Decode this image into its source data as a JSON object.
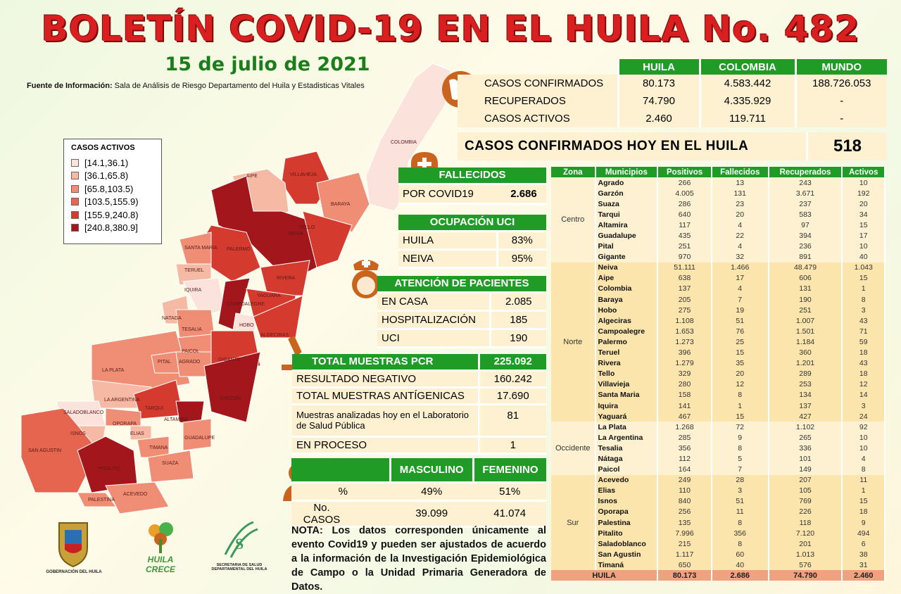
{
  "header": {
    "title": "BOLETÍN COVID-19 EN EL HUILA No. 482",
    "date": "15 de julio de 2021",
    "source_label": "Fuente de Información:",
    "source_text": " Sala de Análisis de Riesgo Departamento del Huila y Estadisticas Vitales"
  },
  "legend": {
    "title": "CASOS ACTIVOS",
    "items": [
      {
        "label": "[14.1,36.1)",
        "color": "#fbe3dc"
      },
      {
        "label": "[36.1,65.8)",
        "color": "#f6b9a3"
      },
      {
        "label": "[65.8,103.5)",
        "color": "#ef8e74"
      },
      {
        "label": "[103.5,155.9)",
        "color": "#e5654e"
      },
      {
        "label": "[155.9,240.8)",
        "color": "#d43a2e"
      },
      {
        "label": "[240.8,380.9]",
        "color": "#a3161b"
      }
    ]
  },
  "map_labels": [
    "COLOMBIA",
    "AIPE",
    "VILLAVIEJA",
    "BARAYA",
    "TELLO",
    "NEIVA",
    "SANTA MARIA",
    "PALERMO",
    "TERUEL",
    "RIVERA",
    "IQUIRA",
    "CAMPOALEGRE",
    "YAGUARA",
    "NATAGA",
    "HOBO",
    "TESALIA",
    "ALGECIRAS",
    "PAICOL",
    "GIGANTE",
    "LA PLATA",
    "PITAL",
    "AGRADO",
    "GARZON",
    "LA ARGENTINA",
    "TARQUI",
    "SALADOBLANCO",
    "ISNOS",
    "OPORAPA",
    "ELIAS",
    "ALTAMIRA",
    "GUADALUPE",
    "TIMANA",
    "SAN AGUSTIN",
    "SUAZA",
    "PITALITO",
    "ACEVEDO",
    "PALESTINA"
  ],
  "summary": {
    "headers": [
      "HUILA",
      "COLOMBIA",
      "MUNDO"
    ],
    "rows": [
      {
        "label": "CASOS CONFIRMADOS",
        "values": [
          "80.173",
          "4.583.442",
          "188.726.053"
        ]
      },
      {
        "label": "RECUPERADOS",
        "values": [
          "74.790",
          "4.335.929",
          "-"
        ]
      },
      {
        "label": "CASOS ACTIVOS",
        "values": [
          "2.460",
          "119.711",
          "-"
        ]
      }
    ],
    "today_label": "CASOS CONFIRMADOS  HOY EN EL HUILA",
    "today_value": "518"
  },
  "fallecidos": {
    "title": "FALLECIDOS",
    "label": "POR COVID19",
    "value": "2.686"
  },
  "uci": {
    "title": "OCUPACIÓN UCI",
    "rows": [
      {
        "label": "HUILA",
        "value": "83%"
      },
      {
        "label": "NEIVA",
        "value": "95%"
      }
    ]
  },
  "atencion": {
    "title": "ATENCIÓN DE PACIENTES",
    "rows": [
      {
        "label": "EN CASA",
        "value": "2.085"
      },
      {
        "label": "HOSPITALIZACIÓN",
        "value": "185"
      },
      {
        "label": "UCI",
        "value": "190"
      }
    ]
  },
  "pcr": {
    "title": "TOTAL MUESTRAS PCR",
    "value": "225.092",
    "rows": [
      {
        "label": "RESULTADO  NEGATIVO",
        "value": "160.242"
      },
      {
        "label": "TOTAL  MUESTRAS  ANTÍGENICAS",
        "value": "17.690"
      },
      {
        "label": "Muestras analizadas hoy en el Laboratorio de Salud Pública",
        "value": "81"
      },
      {
        "label": "EN PROCESO",
        "value": "1"
      }
    ]
  },
  "gender": {
    "headers": [
      "MASCULINO",
      "FEMENINO"
    ],
    "rows": [
      {
        "label": "%",
        "values": [
          "49%",
          "51%"
        ]
      },
      {
        "label": "No. CASOS",
        "values": [
          "39.099",
          "41.074"
        ]
      }
    ]
  },
  "nota": "NOTA: Los datos corresponden únicamente al evento Covid19 y pueden ser ajustados de acuerdo a la información de la Investigación Epidemiológica de Campo o la Unidad Primaria Generadora de Datos.",
  "municipios": {
    "headers": [
      "Zona",
      "Municipios",
      "Positivos",
      "Fallecidos",
      "Recuperados",
      "Activos"
    ],
    "zones": [
      {
        "name": "Centro",
        "rows": [
          [
            "Agrado",
            "266",
            "13",
            "243",
            "10"
          ],
          [
            "Garzón",
            "4.005",
            "131",
            "3.671",
            "192"
          ],
          [
            "Suaza",
            "286",
            "23",
            "237",
            "20"
          ],
          [
            "Tarqui",
            "640",
            "20",
            "583",
            "34"
          ],
          [
            "Altamira",
            "117",
            "4",
            "97",
            "15"
          ],
          [
            "Guadalupe",
            "435",
            "22",
            "394",
            "17"
          ],
          [
            "Pital",
            "251",
            "4",
            "236",
            "10"
          ],
          [
            "Gigante",
            "970",
            "32",
            "891",
            "40"
          ]
        ]
      },
      {
        "name": "Norte",
        "rows": [
          [
            "Neiva",
            "51.111",
            "1.466",
            "48.479",
            "1.043"
          ],
          [
            "Aipe",
            "638",
            "17",
            "606",
            "15"
          ],
          [
            "Colombia",
            "137",
            "4",
            "131",
            "1"
          ],
          [
            "Baraya",
            "205",
            "7",
            "190",
            "8"
          ],
          [
            "Hobo",
            "275",
            "19",
            "251",
            "3"
          ],
          [
            "Algeciras",
            "1.108",
            "51",
            "1.007",
            "43"
          ],
          [
            "Campoalegre",
            "1.653",
            "76",
            "1.501",
            "71"
          ],
          [
            "Palermo",
            "1.273",
            "25",
            "1.184",
            "59"
          ],
          [
            "Teruel",
            "396",
            "15",
            "360",
            "18"
          ],
          [
            "Rivera",
            "1.279",
            "35",
            "1.201",
            "43"
          ],
          [
            "Tello",
            "329",
            "20",
            "289",
            "18"
          ],
          [
            "Villavieja",
            "280",
            "12",
            "253",
            "12"
          ],
          [
            "Santa Maria",
            "158",
            "8",
            "134",
            "14"
          ],
          [
            "Iquira",
            "141",
            "1",
            "137",
            "3"
          ],
          [
            "Yaguará",
            "467",
            "15",
            "427",
            "24"
          ]
        ]
      },
      {
        "name": "Occidente",
        "rows": [
          [
            "La Plata",
            "1.268",
            "72",
            "1.102",
            "92"
          ],
          [
            "La Argentina",
            "285",
            "9",
            "265",
            "10"
          ],
          [
            "Tesalia",
            "356",
            "8",
            "336",
            "10"
          ],
          [
            "Nátaga",
            "112",
            "5",
            "101",
            "4"
          ],
          [
            "Paicol",
            "164",
            "7",
            "149",
            "8"
          ]
        ]
      },
      {
        "name": "Sur",
        "rows": [
          [
            "Acevedo",
            "249",
            "28",
            "207",
            "11"
          ],
          [
            "Elias",
            "110",
            "3",
            "105",
            "1"
          ],
          [
            "Isnos",
            "840",
            "51",
            "769",
            "15"
          ],
          [
            "Oporapa",
            "256",
            "11",
            "226",
            "18"
          ],
          [
            "Palestina",
            "135",
            "8",
            "118",
            "9"
          ],
          [
            "Pitalito",
            "7.996",
            "356",
            "7.120",
            "494"
          ],
          [
            "Saladoblanco",
            "215",
            "8",
            "201",
            "6"
          ],
          [
            "San Agustin",
            "1.117",
            "60",
            "1.013",
            "38"
          ],
          [
            "Timaná",
            "650",
            "40",
            "576",
            "31"
          ]
        ]
      }
    ],
    "total": [
      "HUILA",
      "80.173",
      "2.686",
      "74.790",
      "2.460"
    ]
  },
  "logos": {
    "gobernacion": "GOBERNACIÓN DEL HUILA",
    "huila_crece": "HUILA CRECE",
    "secretaria": "SECRETARIA DE SALUD DEPARTAMENTAL DEL HUILA"
  },
  "colors": {
    "green": "#1f9b26",
    "title_red": "#d91f1f",
    "icon_orange": "#c8641e"
  }
}
